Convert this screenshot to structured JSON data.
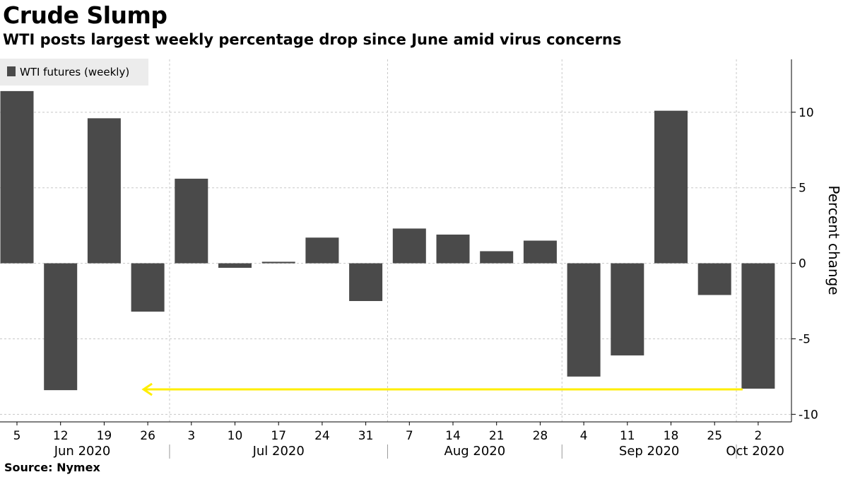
{
  "header": {
    "title": "Crude Slump",
    "subtitle": "WTI posts largest weekly percentage drop since June amid virus concerns"
  },
  "footer": {
    "source": "Source: Nymex"
  },
  "colors": {
    "bar": "#4a4a4a",
    "grid": "#c8c8c8",
    "arrow": "#ffee00",
    "legend_bg": "#ececec"
  },
  "chart_data": {
    "type": "bar",
    "categories": [
      "5",
      "12",
      "19",
      "26",
      "3",
      "10",
      "17",
      "24",
      "31",
      "7",
      "14",
      "21",
      "28",
      "4",
      "11",
      "18",
      "25",
      "2"
    ],
    "months": [
      {
        "label": "Jun 2020",
        "start": 0,
        "end": 3
      },
      {
        "label": "Jul 2020",
        "start": 4,
        "end": 8
      },
      {
        "label": "Aug 2020",
        "start": 9,
        "end": 12
      },
      {
        "label": "Sep 2020",
        "start": 13,
        "end": 16
      },
      {
        "label": "Oct 2020",
        "start": 17,
        "end": 17
      }
    ],
    "series": [
      {
        "name": "WTI futures (weekly)",
        "values": [
          11.4,
          -8.4,
          9.6,
          -3.2,
          5.6,
          -0.3,
          0.1,
          1.7,
          -2.5,
          2.3,
          1.9,
          0.8,
          1.5,
          -7.5,
          -6.1,
          10.1,
          -2.1,
          -8.3
        ]
      }
    ],
    "ylabel": "Percent change",
    "ylim": [
      -10.5,
      13.5
    ],
    "yticks": [
      10,
      5,
      0,
      -5,
      -10
    ],
    "ytick_labels": [
      "10",
      "5",
      "0",
      "-5",
      "-10"
    ],
    "grid": true,
    "legend": "top-left",
    "annotation": {
      "type": "arrow",
      "from_index": 17,
      "to_index": 3,
      "y": -8.3
    }
  }
}
